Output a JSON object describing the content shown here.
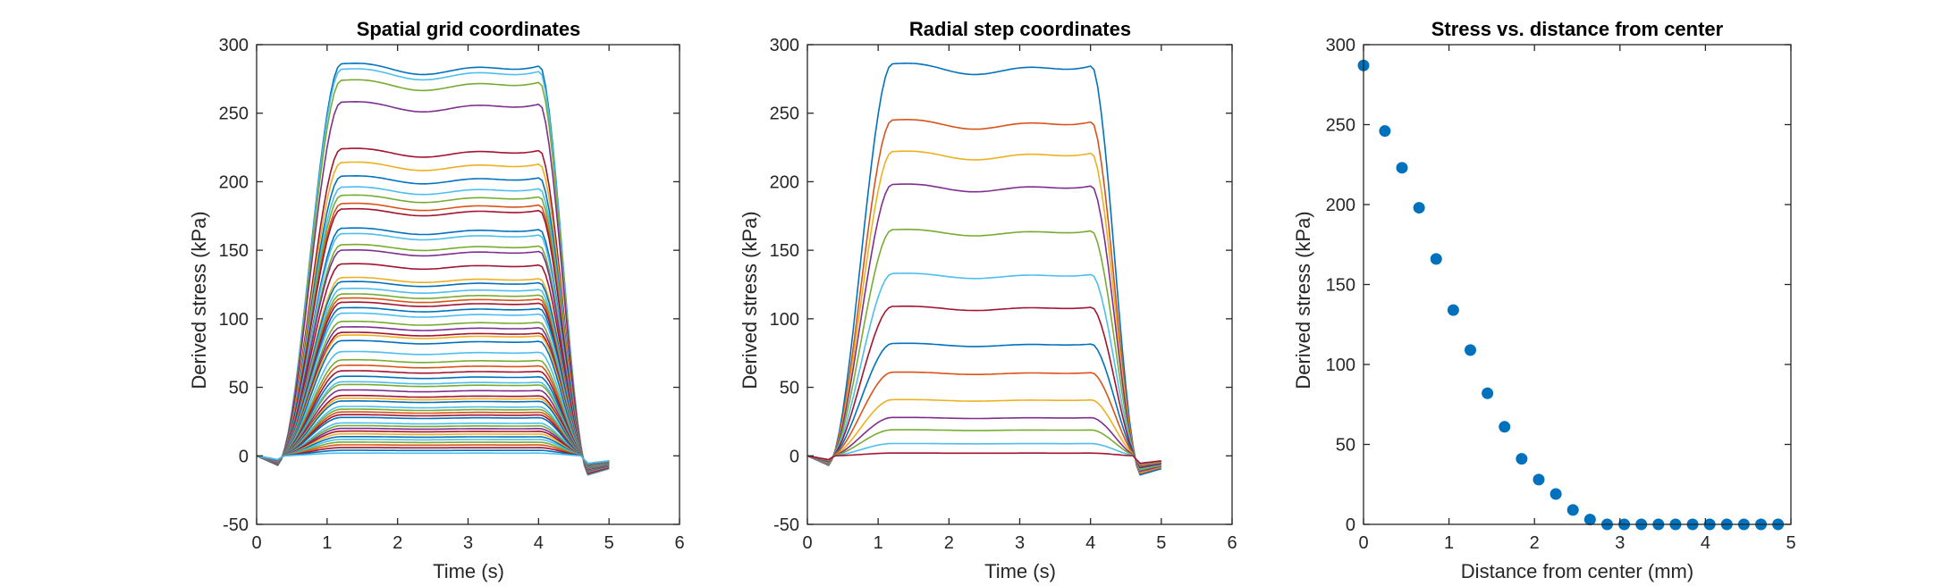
{
  "chart_data": [
    {
      "type": "line",
      "title": "Spatial grid coordinates",
      "xlabel": "Time (s)",
      "ylabel": "Derived stress (kPa)",
      "xlim": [
        0,
        6
      ],
      "ylim": [
        -50,
        300
      ],
      "xticks": [
        "0",
        "1",
        "2",
        "3",
        "4",
        "5",
        "6"
      ],
      "yticks": [
        "-50",
        "0",
        "50",
        "100",
        "150",
        "200",
        "250",
        "300"
      ],
      "grid": false,
      "legend": "none",
      "profile": "plateau pulse: rise 0.3-1.2 s, plateau 1.2-4.0 s, fall 4.0-4.7 s, ends 5.0 s",
      "series_peak_values": [
        286,
        282,
        274,
        258,
        224,
        214,
        204,
        196,
        190,
        184,
        180,
        166,
        162,
        154,
        150,
        140,
        130,
        127,
        122,
        118,
        115,
        112,
        108,
        104,
        98,
        94,
        90,
        88,
        84,
        76,
        70,
        66,
        62,
        58,
        54,
        52,
        48,
        44,
        42,
        40,
        36,
        34,
        32,
        30,
        28,
        24,
        22,
        20,
        18,
        16,
        14,
        12,
        10,
        8,
        6,
        4,
        2
      ],
      "series_colors": [
        "#0072BD",
        "#4DBEEE",
        "#77AC30",
        "#7E2F8E",
        "#A2142F",
        "#EDB120",
        "#0072BD",
        "#4DBEEE",
        "#77AC30",
        "#D95319",
        "#A2142F"
      ]
    },
    {
      "type": "line",
      "title": "Radial step coordinates",
      "xlabel": "Time (s)",
      "ylabel": "Derived stress (kPa)",
      "xlim": [
        0,
        6
      ],
      "ylim": [
        -50,
        300
      ],
      "xticks": [
        "0",
        "1",
        "2",
        "3",
        "4",
        "5",
        "6"
      ],
      "yticks": [
        "-50",
        "0",
        "50",
        "100",
        "150",
        "200",
        "250",
        "300"
      ],
      "grid": false,
      "legend": "none",
      "series_peak_values": [
        286,
        245,
        222,
        198,
        165,
        133,
        109,
        82,
        61,
        41,
        28,
        19,
        9,
        2
      ],
      "series_colors": [
        "#0072BD",
        "#D95319",
        "#EDB120",
        "#7E2F8E",
        "#77AC30",
        "#4DBEEE",
        "#A2142F",
        "#0072BD",
        "#D95319",
        "#EDB120",
        "#7E2F8E",
        "#77AC30",
        "#4DBEEE",
        "#A2142F"
      ]
    },
    {
      "type": "scatter",
      "title": "Stress vs. distance from center",
      "xlabel": "Distance from center (mm)",
      "ylabel": "Derived stress (kPa)",
      "xlim": [
        0,
        5
      ],
      "ylim": [
        0,
        300
      ],
      "xticks": [
        "0",
        "1",
        "2",
        "3",
        "4",
        "5"
      ],
      "yticks": [
        "0",
        "50",
        "100",
        "150",
        "200",
        "250",
        "300"
      ],
      "grid": false,
      "legend": "none",
      "marker_color": "#0072BD",
      "x": [
        0,
        0.25,
        0.45,
        0.65,
        0.85,
        1.05,
        1.25,
        1.45,
        1.65,
        1.85,
        2.05,
        2.25,
        2.45,
        2.65,
        2.85,
        3.05,
        3.25,
        3.45,
        3.65,
        3.85,
        4.05,
        4.25,
        4.45,
        4.65,
        4.85
      ],
      "y": [
        287,
        246,
        223,
        198,
        166,
        134,
        109,
        82,
        61,
        41,
        28,
        19,
        9,
        3,
        0,
        0,
        0,
        0,
        0,
        0,
        0,
        0,
        0,
        0,
        0
      ]
    }
  ]
}
